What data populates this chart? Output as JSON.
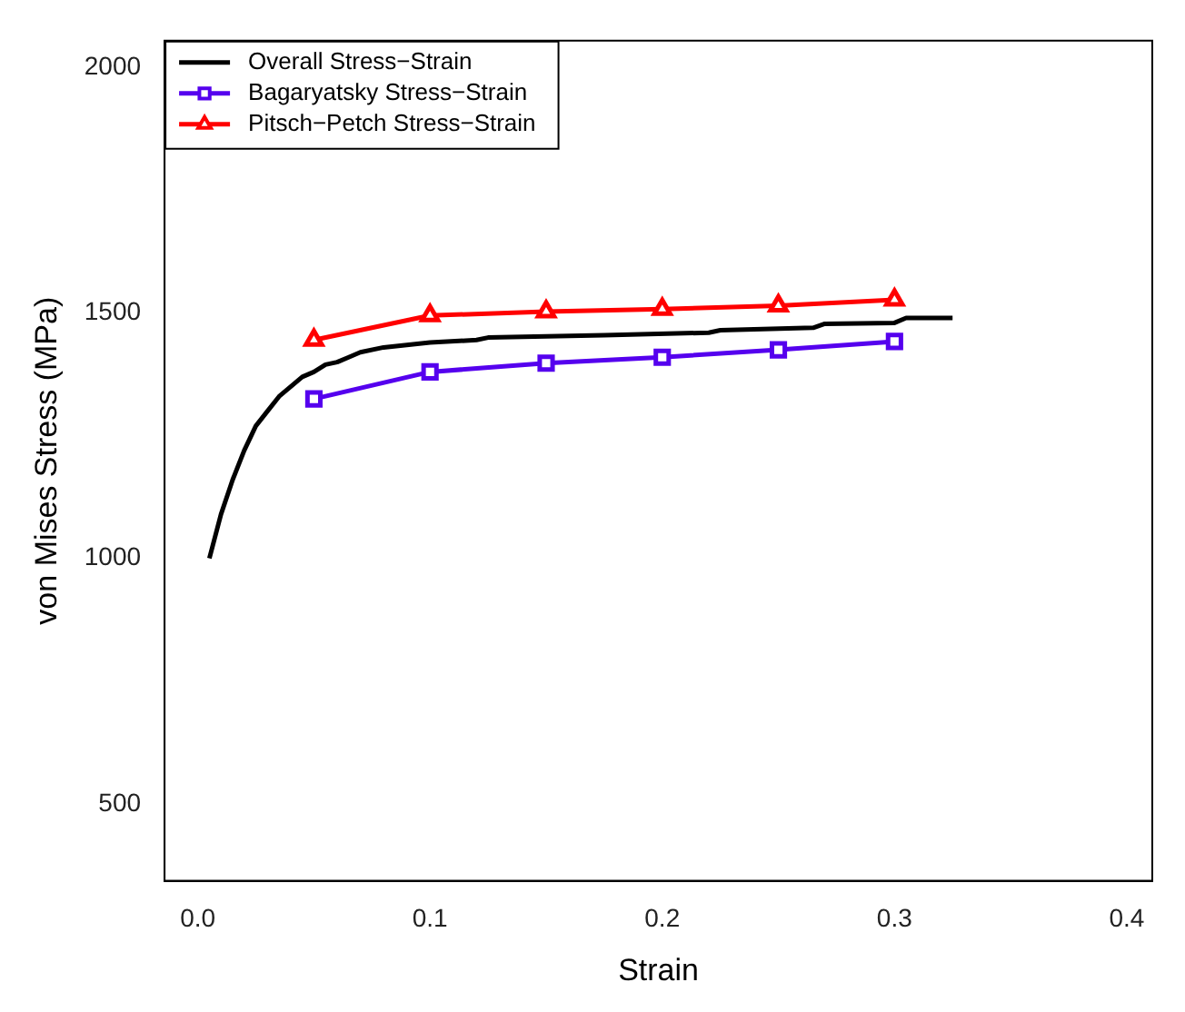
{
  "chart_data": {
    "type": "line",
    "xlabel": "Strain",
    "ylabel": "von Mises Stress (MPa)",
    "xlim": [
      -0.0143,
      0.411
    ],
    "ylim": [
      343,
      2055
    ],
    "xticks": [
      {
        "value": 0,
        "label": "0.0"
      },
      0.1,
      0.2,
      0.3,
      0.4
    ],
    "yticks": [
      500,
      1000,
      1500,
      2000
    ],
    "grid": false,
    "legend": "top left",
    "line_style": "solid",
    "series": [
      {
        "name": "Overall Stress−Strain",
        "color": "#000000",
        "marker": "none",
        "x": [
          0.005,
          0.01,
          0.015,
          0.02,
          0.025,
          0.03,
          0.035,
          0.04,
          0.045,
          0.05,
          0.055,
          0.06,
          0.065,
          0.07,
          0.08,
          0.09,
          0.1,
          0.12,
          0.125,
          0.175,
          0.22,
          0.225,
          0.265,
          0.27,
          0.3,
          0.305,
          0.325
        ],
        "values": [
          1000,
          1090,
          1160,
          1220,
          1270,
          1300,
          1330,
          1350,
          1370,
          1380,
          1395,
          1400,
          1410,
          1420,
          1430,
          1435,
          1440,
          1445,
          1450,
          1455,
          1460,
          1465,
          1470,
          1478,
          1480,
          1490,
          1490
        ]
      },
      {
        "name": "Bagaryatsky Stress−Strain",
        "color": "#5500ee",
        "marker": "square",
        "x": [
          0.05,
          0.1,
          0.15,
          0.2,
          0.25,
          0.3
        ],
        "values": [
          1325,
          1380,
          1398,
          1410,
          1425,
          1442
        ]
      },
      {
        "name": "Pitsch−Petch Stress−Strain",
        "color": "#ff0000",
        "marker": "triangle",
        "x": [
          0.05,
          0.1,
          0.15,
          0.2,
          0.25,
          0.3
        ],
        "values": [
          1445,
          1495,
          1503,
          1508,
          1515,
          1527
        ]
      }
    ]
  }
}
